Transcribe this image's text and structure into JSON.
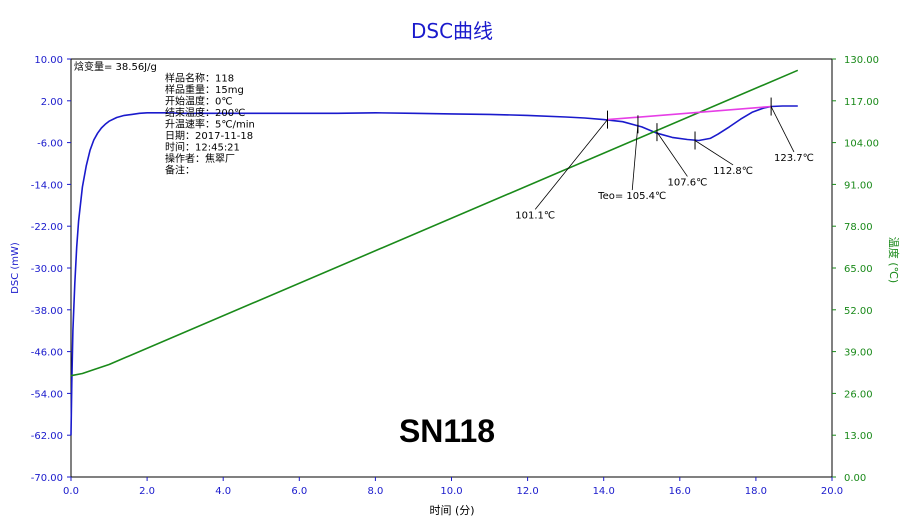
{
  "chart_data": {
    "type": "line",
    "title": "DSC曲线",
    "xlabel": "时间 (分)",
    "ylabel_left": "DSC (mW)",
    "ylabel_right": "温度 (℃)",
    "xlim": [
      0,
      20
    ],
    "ylim_left": [
      -70,
      10
    ],
    "ylim_right": [
      0,
      130
    ],
    "x_ticks": [
      "0.0",
      "2.0",
      "4.0",
      "6.0",
      "8.0",
      "10.0",
      "12.0",
      "14.0",
      "16.0",
      "18.0",
      "20.0"
    ],
    "y_left_ticks": [
      "10.00",
      "2.00",
      "-6.00",
      "-14.00",
      "-22.00",
      "-30.00",
      "-38.00",
      "-46.00",
      "-54.00",
      "-62.00",
      "-70.00"
    ],
    "y_right_ticks": [
      "130.00",
      "117.00",
      "104.00",
      "91.00",
      "78.00",
      "65.00",
      "52.00",
      "39.00",
      "26.00",
      "13.00",
      "0.00"
    ],
    "grid": false,
    "watermark": "SN118",
    "info_block": [
      {
        "label": "焓变量",
        "value": "38.56J/g",
        "sep": "= "
      },
      {
        "label": "样品名称",
        "value": "118",
        "sep": "："
      },
      {
        "label": "样品重量",
        "value": "15mg",
        "sep": "："
      },
      {
        "label": "开始温度",
        "value": "0℃",
        "sep": "："
      },
      {
        "label": "结束温度",
        "value": "200℃",
        "sep": "："
      },
      {
        "label": "升温速率",
        "value": "5℃/min",
        "sep": "："
      },
      {
        "label": "日期",
        "value": "2017-11-18",
        "sep": "："
      },
      {
        "label": "时间",
        "value": "12:45:21",
        "sep": "："
      },
      {
        "label": "操作者",
        "value": "焦翠厂",
        "sep": "："
      },
      {
        "label": "备注",
        "value": "",
        "sep": "："
      }
    ],
    "series": [
      {
        "color": "#1a1acc",
        "axis": "left",
        "x": [
          0.0,
          0.02,
          0.05,
          0.1,
          0.15,
          0.2,
          0.3,
          0.4,
          0.5,
          0.6,
          0.7,
          0.8,
          0.9,
          1.0,
          1.2,
          1.4,
          1.6,
          1.8,
          2.0,
          2.5,
          3.0,
          4.0,
          5.0,
          6.0,
          7.0,
          8.0,
          9.0,
          10.0,
          11.0,
          12.0,
          13.0,
          13.5,
          14.0,
          14.5,
          15.0,
          15.4,
          15.8,
          16.2,
          16.5,
          16.8,
          17.0,
          17.3,
          17.6,
          17.9,
          18.2,
          18.4,
          18.7,
          19.1
        ],
        "y": [
          -62,
          -52,
          -42,
          -33,
          -26,
          -21,
          -14.5,
          -10.5,
          -7.5,
          -5.5,
          -4.2,
          -3.2,
          -2.5,
          -1.9,
          -1.2,
          -0.8,
          -0.6,
          -0.4,
          -0.3,
          -0.3,
          -0.4,
          -0.4,
          -0.4,
          -0.4,
          -0.4,
          -0.3,
          -0.4,
          -0.5,
          -0.6,
          -0.8,
          -1.1,
          -1.3,
          -1.6,
          -2.0,
          -3.0,
          -4.2,
          -5.0,
          -5.4,
          -5.6,
          -5.2,
          -4.4,
          -3.0,
          -1.5,
          -0.2,
          0.6,
          0.9,
          1.0,
          1.0
        ]
      },
      {
        "color": "#1a8a1a",
        "axis": "right",
        "x": [
          0.0,
          0.3,
          0.6,
          1.0,
          19.1
        ],
        "y": [
          31.5,
          32.2,
          33.4,
          35.0,
          126.5
        ]
      },
      {
        "color": "#e63ee6",
        "axis": "left",
        "x": [
          14.1,
          18.4
        ],
        "y": [
          -1.6,
          0.9
        ]
      }
    ],
    "annotations": [
      {
        "text": "101.1℃",
        "marker": [
          14.1,
          -1.6
        ],
        "label": [
          12.2,
          -20.5
        ]
      },
      {
        "text": "Teo= 105.4℃",
        "marker": [
          14.9,
          -2.5
        ],
        "label": [
          14.75,
          -16.8
        ]
      },
      {
        "text": "107.6℃",
        "marker": [
          15.4,
          -4.0
        ],
        "label": [
          16.2,
          -14.2
        ]
      },
      {
        "text": "112.8℃",
        "marker": [
          16.4,
          -5.6
        ],
        "label": [
          17.4,
          -12.0
        ]
      },
      {
        "text": "123.7℃",
        "marker": [
          18.4,
          0.9
        ],
        "label": [
          19.0,
          -9.5
        ]
      }
    ]
  }
}
